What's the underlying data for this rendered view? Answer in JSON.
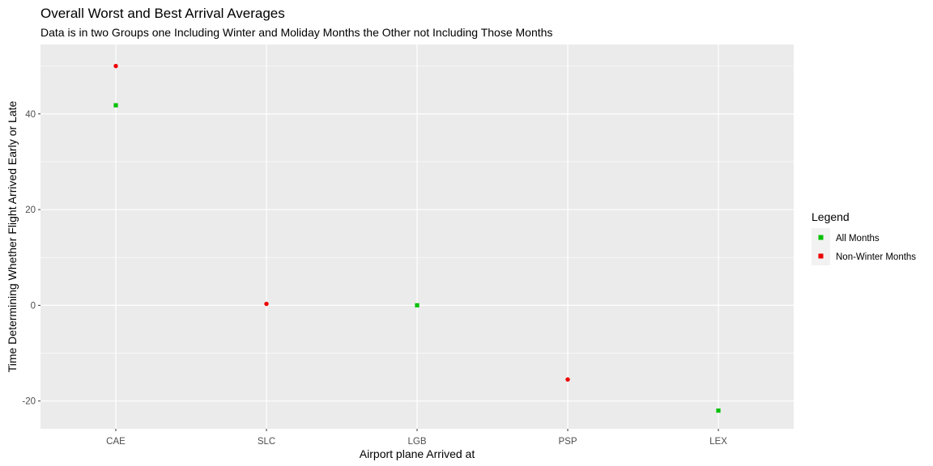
{
  "chart_data": {
    "type": "scatter",
    "title": "Overall Worst and Best Arrival Averages",
    "subtitle": "Data is in two Groups one Including Winter and Moliday Months the Other not Including Those Months",
    "xlabel": "Airport plane Arrived at",
    "ylabel": "Time Determining Whether Flight Arrived Early or Late",
    "categories": [
      "CAE",
      "SLC",
      "LGB",
      "PSP",
      "LEX"
    ],
    "ylim": [
      -25.8,
      54.5
    ],
    "yticks": [
      -20,
      0,
      20,
      40
    ],
    "grid": true,
    "legend": {
      "title": "Legend",
      "position": "right",
      "entries": [
        "All Months",
        "Non-Winter Months"
      ]
    },
    "series": [
      {
        "name": "All Months",
        "color": "#00c000",
        "marker": "square",
        "points": [
          {
            "x": "CAE",
            "y": 41.8
          },
          {
            "x": "LGB",
            "y": 0.0
          },
          {
            "x": "LEX",
            "y": -22.0
          }
        ]
      },
      {
        "name": "Non-Winter Months",
        "color": "#ee0000",
        "marker": "circle",
        "points": [
          {
            "x": "CAE",
            "y": 50.0
          },
          {
            "x": "SLC",
            "y": 0.3
          },
          {
            "x": "PSP",
            "y": -15.5
          }
        ]
      }
    ]
  }
}
